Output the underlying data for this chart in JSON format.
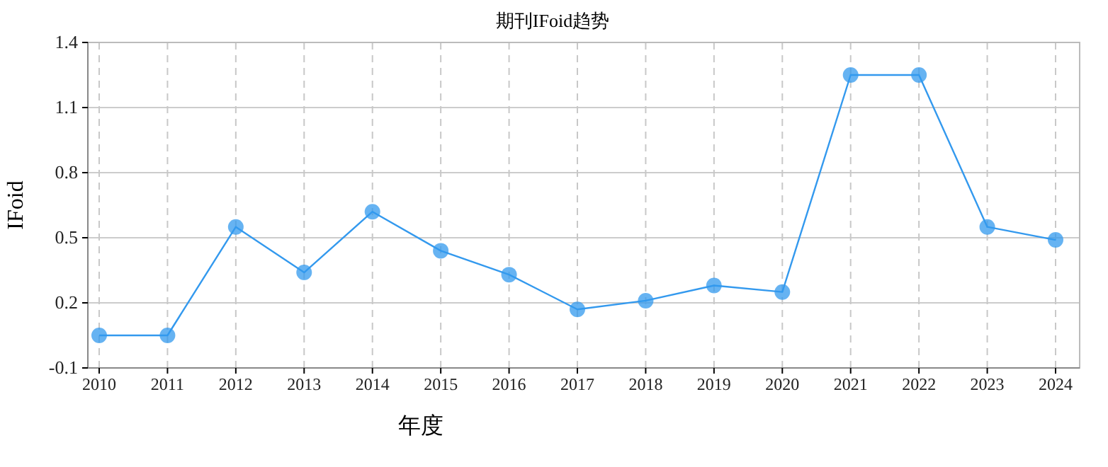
{
  "chart_data": {
    "type": "line",
    "title": "期刊IFoid趋势",
    "xlabel": "年度",
    "ylabel": "IFoid",
    "categories": [
      "2010",
      "2011",
      "2012",
      "2013",
      "2014",
      "2015",
      "2016",
      "2017",
      "2018",
      "2019",
      "2020",
      "2021",
      "2022",
      "2023",
      "2024"
    ],
    "series": [
      {
        "color": "#3399ee",
        "values": [
          0.05,
          0.05,
          0.55,
          0.34,
          0.62,
          0.44,
          0.33,
          0.17,
          0.21,
          0.28,
          0.25,
          1.25,
          1.25,
          0.55,
          0.49
        ]
      }
    ],
    "ylim": [
      -0.1,
      1.4
    ],
    "yticks": [
      -0.1,
      0.2,
      0.5,
      0.8,
      1.1,
      1.4
    ],
    "grid": true,
    "marker": "circle",
    "line_style": "solid"
  }
}
